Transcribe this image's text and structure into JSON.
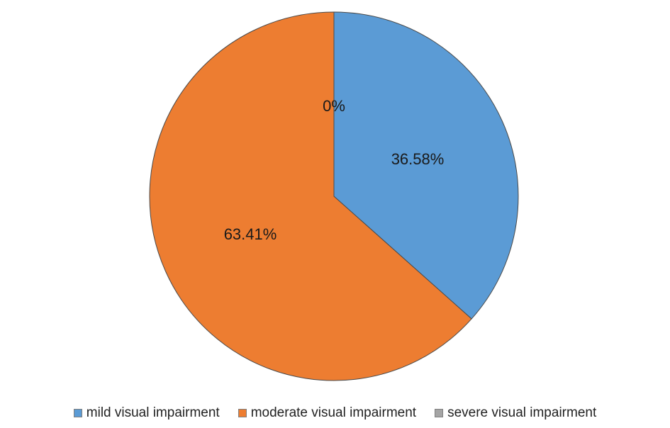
{
  "chart_data": {
    "type": "pie",
    "title": "",
    "legend_position": "bottom",
    "slices": [
      {
        "name": "mild visual impairment",
        "value": 36.58,
        "label": "36.58%",
        "color": "#5B9BD5"
      },
      {
        "name": "severe visual impairment",
        "value": 0,
        "label": "0%",
        "color": "#A5A5A5"
      },
      {
        "name": "moderate visual impairment",
        "value": 63.41,
        "label": "63.41%",
        "color": "#ED7D31"
      }
    ],
    "legend": [
      {
        "label": "mild visual impairment",
        "color": "#5B9BD5"
      },
      {
        "label": "moderate visual impairment",
        "color": "#ED7D31"
      },
      {
        "label": "severe visual impairment",
        "color": "#A5A5A5"
      }
    ],
    "edge_color": "#4a4a4a"
  }
}
